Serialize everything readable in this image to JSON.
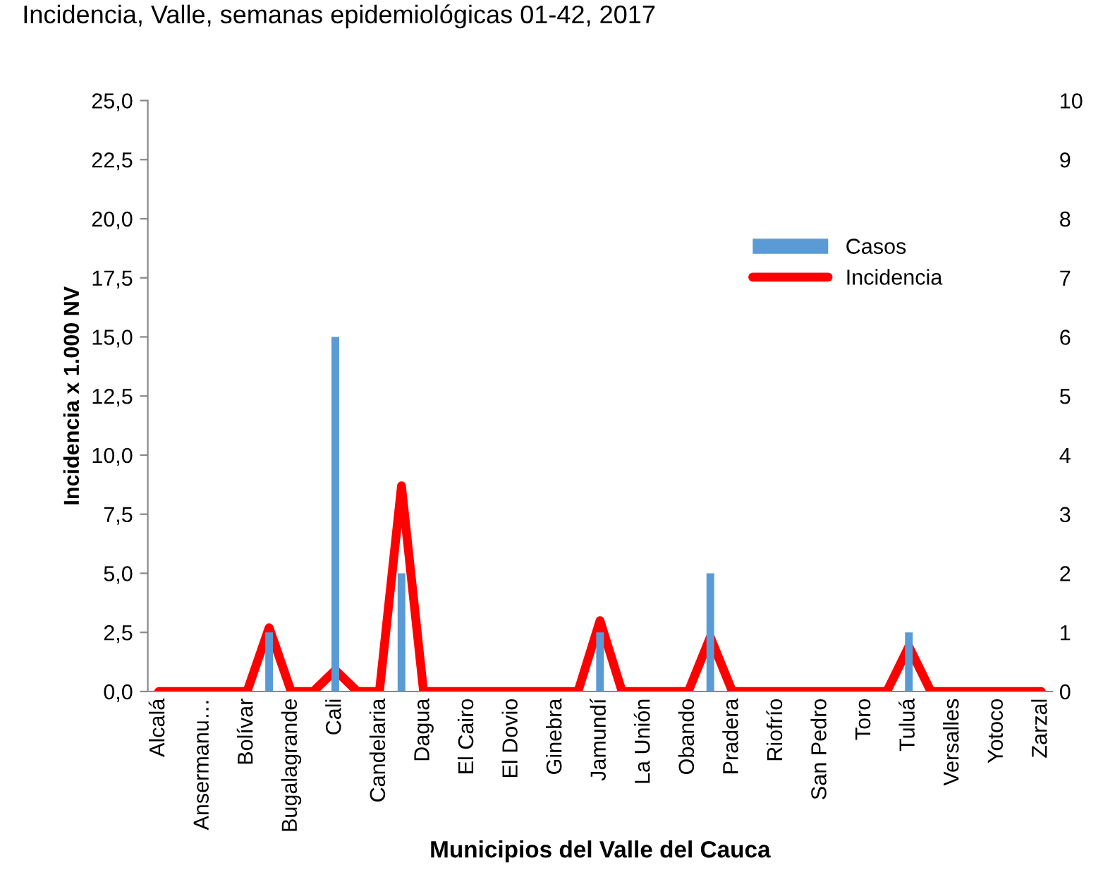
{
  "chart_data": {
    "type": "bar",
    "title": "Incidencia, Valle, semanas epidemiológicas 01-42, 2017",
    "categories": [
      "Alcalá",
      null,
      "Ansermanu…",
      null,
      "Bolívar",
      null,
      "Bugalagrande",
      null,
      "Cali",
      null,
      "Candelaria",
      null,
      "Dagua",
      null,
      "El Cairo",
      null,
      "El Dovio",
      null,
      "Ginebra",
      null,
      "Jamundí",
      null,
      "La Unión",
      null,
      "Obando",
      null,
      "Pradera",
      null,
      "Riofrío",
      null,
      "San Pedro",
      null,
      "Toro",
      null,
      "Tuluá",
      null,
      "Versalles",
      null,
      "Yotoco",
      null,
      "Zarzal"
    ],
    "series": [
      {
        "name": "Casos",
        "axis": "y2",
        "color": "#5b9bd5",
        "values": [
          0,
          0,
          0,
          0,
          0,
          1,
          0,
          0,
          6,
          0,
          0,
          2,
          0,
          0,
          0,
          0,
          0,
          0,
          0,
          0,
          1,
          0,
          0,
          0,
          0,
          2,
          0,
          0,
          0,
          0,
          0,
          0,
          0,
          0,
          1,
          0,
          0,
          0,
          0,
          0,
          0
        ]
      },
      {
        "name": "Incidencia",
        "type": "line",
        "color": "#ff0000",
        "values": [
          0,
          0,
          0,
          0,
          0,
          2.7,
          0,
          0,
          0.9,
          0,
          0,
          8.7,
          0,
          0,
          0,
          0,
          0,
          0,
          0,
          0,
          3.0,
          0,
          0,
          0,
          0,
          2.3,
          0,
          0,
          0,
          0,
          0,
          0,
          0,
          0,
          1.9,
          0,
          0,
          0,
          0,
          0,
          0
        ]
      }
    ],
    "xlabel": "Municipios del Valle del Cauca",
    "ylabel": "Incidencia x 1.000 NV",
    "ylim": [
      0,
      25
    ],
    "yticks": [
      {
        "value": 0,
        "label": "0,0"
      },
      {
        "value": 2.5,
        "label": "2,5"
      },
      {
        "value": 5,
        "label": "5,0"
      },
      {
        "value": 7.5,
        "label": "7,5"
      },
      {
        "value": 10,
        "label": "10,0"
      },
      {
        "value": 12.5,
        "label": "12,5"
      },
      {
        "value": 15,
        "label": "15,0"
      },
      {
        "value": 17.5,
        "label": "17,5"
      },
      {
        "value": 20,
        "label": "20,0"
      },
      {
        "value": 22.5,
        "label": "22,5"
      },
      {
        "value": 25,
        "label": "25,0"
      }
    ],
    "y2lim": [
      0,
      10
    ],
    "y2ticks": [
      0,
      1,
      2,
      3,
      4,
      5,
      6,
      7,
      8,
      9,
      10
    ],
    "legend": "top right",
    "grid": false,
    "marker": "none",
    "line_style": "solid"
  }
}
